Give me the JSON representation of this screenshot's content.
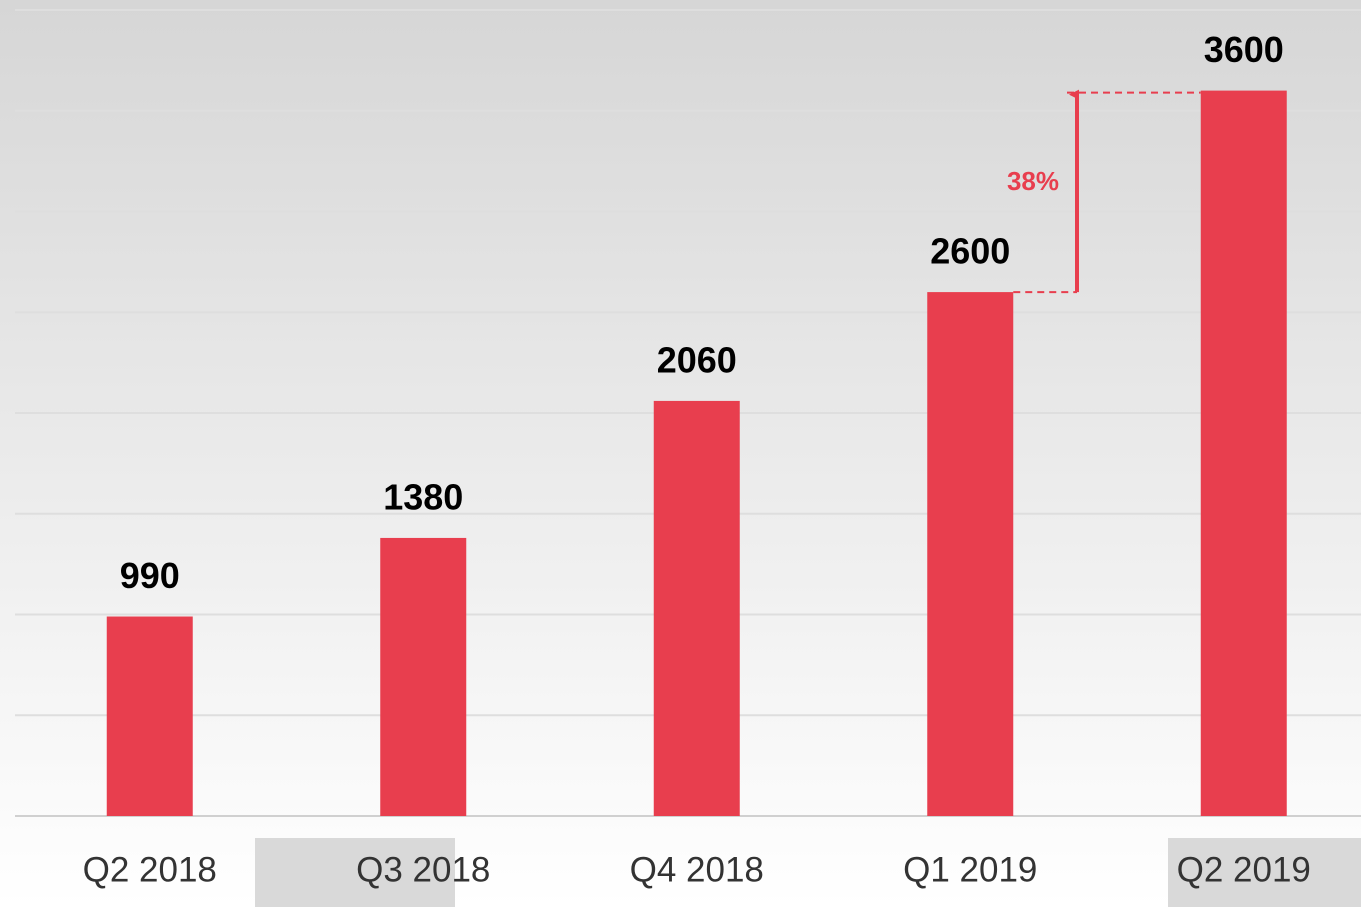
{
  "chart_data": {
    "type": "bar",
    "categories": [
      "Q2 2018",
      "Q3 2018",
      "Q4 2018",
      "Q1 2019",
      "Q2 2019"
    ],
    "values": [
      990,
      1380,
      2060,
      2600,
      3600
    ],
    "color": "#e83e4e",
    "ylim": [
      0,
      4000
    ],
    "yticks": [
      0,
      500,
      1000,
      1500,
      2000,
      2500,
      3000,
      3500,
      4000
    ],
    "grid": true,
    "annotation": "38%"
  }
}
